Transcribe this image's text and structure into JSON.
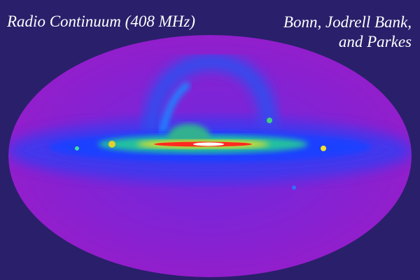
{
  "title": "Radio Continuum (408 MHz)",
  "credit": {
    "line1": "Bonn, Jodrell Bank,",
    "line2": "and Parkes"
  },
  "colors": {
    "background": "#2a1f6b",
    "sky_base": "#8a1fd0",
    "plane_blue": "#1a3cff",
    "plane_green": "#30e070",
    "plane_yellow": "#f0f020",
    "plane_red": "#ff2020",
    "core_white": "#ffffff"
  }
}
